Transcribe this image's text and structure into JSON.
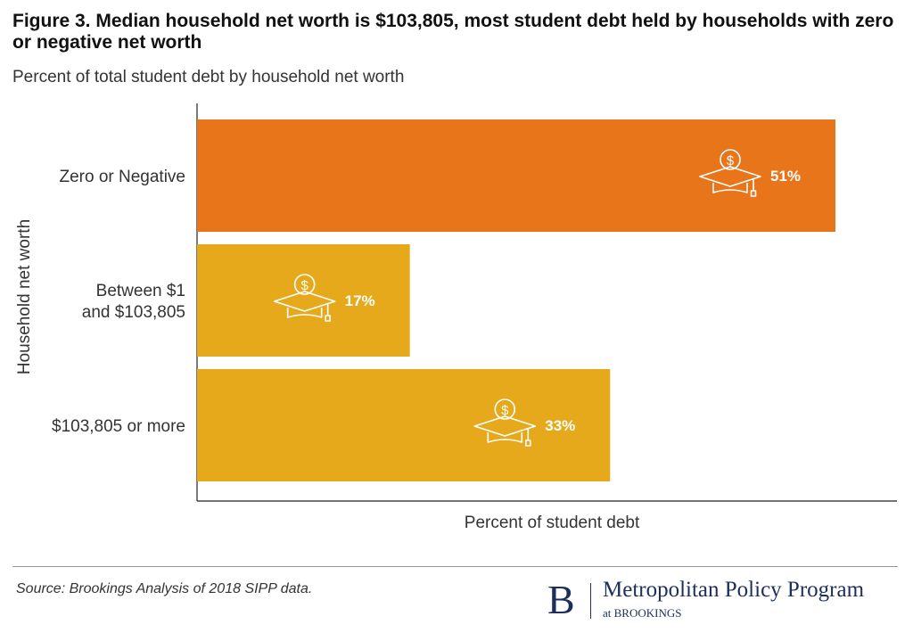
{
  "header": {
    "title": "Figure 3. Median household net worth is $103,805, most student debt held by households with zero or negative net worth",
    "subtitle": "Percent of total student debt by household net worth"
  },
  "chart_data": {
    "type": "bar",
    "orientation": "horizontal",
    "categories": [
      [
        "Zero or Negative"
      ],
      [
        "Between $1",
        "and $103,805"
      ],
      [
        "$103,805 or more"
      ]
    ],
    "values": [
      51,
      17,
      33
    ],
    "value_labels": [
      "51%",
      "17%",
      "33%"
    ],
    "colors": [
      "#e8751a",
      "#e6a91c",
      "#e6a91c"
    ],
    "xlabel": "Percent of student debt",
    "ylabel": "Household net worth",
    "xlim": [
      0,
      56
    ],
    "grid": false,
    "icon": "graduation-cap-dollar-icon"
  },
  "footer": {
    "source": "Source: Brookings Analysis of 2018 SIPP data.",
    "logo_letter": "B",
    "logo_name": "Metropolitan Policy Program",
    "logo_sub": "at BROOKINGS"
  }
}
